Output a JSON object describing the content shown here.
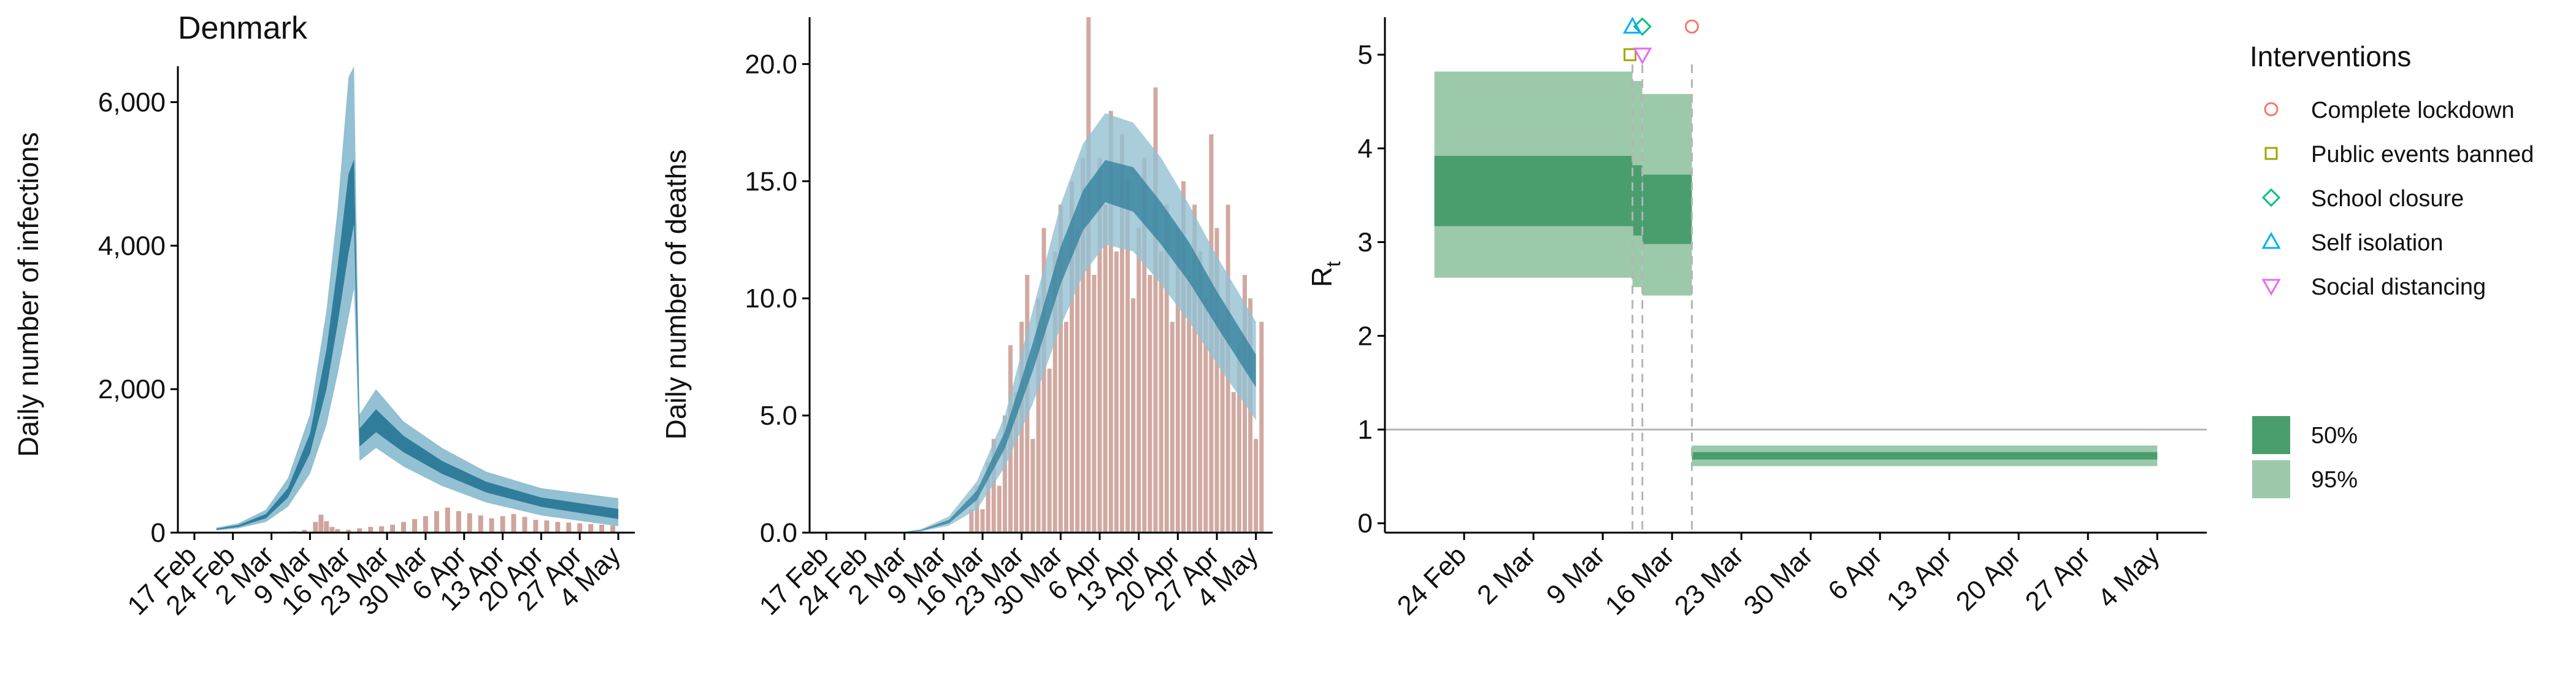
{
  "colors": {
    "infection_dark": "#2f7d9b",
    "infection_light": "#93c0d2",
    "infection_mid": "#5fa0ba",
    "observed_bar": "#c99a91",
    "observed_bar_edge": "#b98a82",
    "rt_50": "#4a9e6d",
    "rt_95": "#9cc9aa",
    "marker_lockdown": "#f8766d",
    "marker_public_events": "#a3a500",
    "marker_school": "#00bf7d",
    "marker_self_isolation": "#00b0f6",
    "marker_social_distancing": "#e76bf3",
    "reference_line": "#b5b5b5",
    "dashed_line": "#b5b5b5"
  },
  "chart_data": [
    {
      "type": "area",
      "panel": "infections",
      "title": "Denmark",
      "xlabel": "",
      "ylabel": "Daily number of infections",
      "x_tick_labels": [
        "17 Feb",
        "24 Feb",
        "2 Mar",
        "9 Mar",
        "16 Mar",
        "23 Mar",
        "30 Mar",
        "6 Apr",
        "13 Apr",
        "20 Apr",
        "27 Apr",
        "4 May"
      ],
      "y_tick_labels": [
        "0",
        "2,000",
        "4,000",
        "6,000"
      ],
      "xlim": [
        "2020-02-14",
        "2020-05-07"
      ],
      "ylim": [
        0,
        6500
      ],
      "series": [
        {
          "kind": "band_95",
          "x": [
            "2020-02-21",
            "2020-02-25",
            "2020-03-01",
            "2020-03-05",
            "2020-03-09",
            "2020-03-12",
            "2020-03-14",
            "2020-03-16",
            "2020-03-17",
            "2020-03-18",
            "2020-03-21",
            "2020-03-26",
            "2020-04-02",
            "2020-04-10",
            "2020-04-20",
            "2020-05-04"
          ],
          "lower": [
            30,
            60,
            150,
            360,
            820,
            1500,
            2200,
            3000,
            3400,
            1000,
            1180,
            920,
            650,
            420,
            240,
            90
          ],
          "upper": [
            70,
            130,
            320,
            760,
            1650,
            3100,
            4500,
            6350,
            6500,
            1650,
            2000,
            1550,
            1180,
            850,
            620,
            480
          ]
        },
        {
          "kind": "band_50",
          "x": [
            "2020-02-21",
            "2020-02-25",
            "2020-03-01",
            "2020-03-05",
            "2020-03-09",
            "2020-03-12",
            "2020-03-14",
            "2020-03-16",
            "2020-03-17",
            "2020-03-18",
            "2020-03-21",
            "2020-03-26",
            "2020-04-02",
            "2020-04-10",
            "2020-04-20",
            "2020-05-04"
          ],
          "lower": [
            40,
            80,
            200,
            490,
            1100,
            2000,
            2900,
            3900,
            4300,
            1200,
            1400,
            1120,
            820,
            560,
            360,
            190
          ],
          "upper": [
            55,
            105,
            260,
            620,
            1380,
            2550,
            3700,
            5000,
            5200,
            1450,
            1720,
            1350,
            1000,
            710,
            490,
            330
          ]
        }
      ],
      "bars": {
        "name": "observed infections",
        "x": [
          "2020-03-02",
          "2020-03-04",
          "2020-03-06",
          "2020-03-08",
          "2020-03-10",
          "2020-03-11",
          "2020-03-12",
          "2020-03-13",
          "2020-03-14",
          "2020-03-16",
          "2020-03-18",
          "2020-03-20",
          "2020-03-22",
          "2020-03-24",
          "2020-03-26",
          "2020-03-28",
          "2020-03-30",
          "2020-04-01",
          "2020-04-03",
          "2020-04-05",
          "2020-04-07",
          "2020-04-09",
          "2020-04-11",
          "2020-04-13",
          "2020-04-15",
          "2020-04-17",
          "2020-04-19",
          "2020-04-21",
          "2020-04-23",
          "2020-04-25",
          "2020-04-27",
          "2020-04-29",
          "2020-05-01",
          "2020-05-03"
        ],
        "values": [
          5,
          10,
          20,
          40,
          150,
          250,
          160,
          80,
          50,
          40,
          60,
          80,
          90,
          110,
          150,
          190,
          230,
          300,
          350,
          300,
          270,
          240,
          200,
          230,
          260,
          220,
          180,
          170,
          150,
          140,
          130,
          120,
          110,
          100
        ]
      }
    },
    {
      "type": "area",
      "panel": "deaths",
      "title": "",
      "xlabel": "",
      "ylabel": "Daily number of deaths",
      "x_tick_labels": [
        "17 Feb",
        "24 Feb",
        "2 Mar",
        "9 Mar",
        "16 Mar",
        "23 Mar",
        "30 Mar",
        "6 Apr",
        "13 Apr",
        "20 Apr",
        "27 Apr",
        "4 May"
      ],
      "y_tick_labels": [
        "0.0",
        "5.0",
        "10.0",
        "15.0",
        "20.0"
      ],
      "xlim": [
        "2020-02-14",
        "2020-05-07"
      ],
      "ylim": [
        0,
        22
      ],
      "series": [
        {
          "kind": "band_95",
          "x": [
            "2020-03-01",
            "2020-03-05",
            "2020-03-10",
            "2020-03-15",
            "2020-03-20",
            "2020-03-25",
            "2020-03-30",
            "2020-04-03",
            "2020-04-07",
            "2020-04-12",
            "2020-04-17",
            "2020-04-22",
            "2020-04-27",
            "2020-05-04"
          ],
          "lower": [
            0.0,
            0.05,
            0.3,
            1.0,
            2.8,
            5.5,
            8.8,
            11.0,
            12.3,
            12.0,
            10.6,
            9.0,
            7.2,
            4.8
          ],
          "upper": [
            0.0,
            0.15,
            0.7,
            2.2,
            5.0,
            9.5,
            14.0,
            16.6,
            17.9,
            17.5,
            16.0,
            14.0,
            11.8,
            9.0
          ]
        },
        {
          "kind": "band_50",
          "x": [
            "2020-03-01",
            "2020-03-05",
            "2020-03-10",
            "2020-03-15",
            "2020-03-20",
            "2020-03-25",
            "2020-03-30",
            "2020-04-03",
            "2020-04-07",
            "2020-04-12",
            "2020-04-17",
            "2020-04-22",
            "2020-04-27",
            "2020-05-04"
          ],
          "lower": [
            0.0,
            0.08,
            0.4,
            1.4,
            3.6,
            6.9,
            10.6,
            12.9,
            14.1,
            13.7,
            12.3,
            10.7,
            8.8,
            6.2
          ],
          "upper": [
            0.0,
            0.12,
            0.55,
            1.8,
            4.3,
            8.1,
            12.2,
            14.6,
            15.9,
            15.6,
            14.1,
            12.4,
            10.3,
            7.6
          ]
        }
      ],
      "bars": {
        "name": "observed deaths",
        "x": [
          "2020-03-14",
          "2020-03-15",
          "2020-03-16",
          "2020-03-17",
          "2020-03-18",
          "2020-03-19",
          "2020-03-20",
          "2020-03-21",
          "2020-03-22",
          "2020-03-23",
          "2020-03-24",
          "2020-03-25",
          "2020-03-26",
          "2020-03-27",
          "2020-03-28",
          "2020-03-29",
          "2020-03-30",
          "2020-03-31",
          "2020-04-01",
          "2020-04-02",
          "2020-04-03",
          "2020-04-04",
          "2020-04-05",
          "2020-04-06",
          "2020-04-07",
          "2020-04-08",
          "2020-04-09",
          "2020-04-10",
          "2020-04-11",
          "2020-04-12",
          "2020-04-13",
          "2020-04-14",
          "2020-04-15",
          "2020-04-16",
          "2020-04-17",
          "2020-04-18",
          "2020-04-19",
          "2020-04-20",
          "2020-04-21",
          "2020-04-22",
          "2020-04-23",
          "2020-04-24",
          "2020-04-25",
          "2020-04-26",
          "2020-04-27",
          "2020-04-28",
          "2020-04-29",
          "2020-04-30",
          "2020-05-01",
          "2020-05-02",
          "2020-05-03",
          "2020-05-04",
          "2020-05-05"
        ],
        "values": [
          1,
          2,
          1,
          3,
          4,
          2,
          5,
          8,
          6,
          9,
          11,
          4,
          10,
          13,
          7,
          12,
          14,
          9,
          15,
          13,
          16,
          22,
          11,
          16,
          14,
          18,
          12,
          17,
          15,
          10,
          13,
          16,
          11,
          19,
          12,
          14,
          9,
          13,
          15,
          11,
          14,
          12,
          10,
          17,
          13,
          9,
          14,
          6,
          8,
          11,
          10,
          4,
          9
        ]
      }
    },
    {
      "type": "area",
      "panel": "reproduction_number",
      "title": "",
      "xlabel": "",
      "ylabel": "R",
      "ylabel_subscript": "t",
      "x_tick_labels": [
        "24 Feb",
        "2 Mar",
        "9 Mar",
        "16 Mar",
        "23 Mar",
        "30 Mar",
        "6 Apr",
        "13 Apr",
        "20 Apr",
        "27 Apr",
        "4 May"
      ],
      "y_tick_labels": [
        "0",
        "1",
        "2",
        "3",
        "4",
        "5"
      ],
      "xlim": [
        "2020-02-16",
        "2020-05-09"
      ],
      "ylim": [
        -0.1,
        5.4
      ],
      "reference_line": 1,
      "steps": [
        {
          "start": "2020-02-21",
          "end": "2020-03-12",
          "lo95": 2.62,
          "hi95": 4.82,
          "lo50": 3.17,
          "hi50": 3.92
        },
        {
          "start": "2020-03-12",
          "end": "2020-03-13",
          "lo95": 2.52,
          "hi95": 4.72,
          "lo50": 3.07,
          "hi50": 3.82
        },
        {
          "start": "2020-03-13",
          "end": "2020-03-18",
          "lo95": 2.43,
          "hi95": 4.58,
          "lo50": 2.98,
          "hi50": 3.72
        },
        {
          "start": "2020-03-18",
          "end": "2020-05-04",
          "lo95": 0.61,
          "hi95": 0.83,
          "lo50": 0.68,
          "hi50": 0.76
        }
      ],
      "interventions": [
        {
          "name": "Complete lockdown",
          "date": "2020-03-18",
          "marker": "circle",
          "level": 5.3
        },
        {
          "name": "Public events banned",
          "date": "2020-03-12",
          "marker": "square",
          "level": 5.0
        },
        {
          "name": "School closure",
          "date": "2020-03-13",
          "marker": "diamond",
          "level": 5.3
        },
        {
          "name": "Self isolation",
          "date": "2020-03-12",
          "marker": "triangle-up",
          "level": 5.3
        },
        {
          "name": "Social distancing",
          "date": "2020-03-13",
          "marker": "triangle-down",
          "level": 5.0
        }
      ]
    }
  ],
  "legend": {
    "interventions_title": "Interventions",
    "interventions": [
      {
        "label": "Complete lockdown",
        "marker": "circle"
      },
      {
        "label": "Public events banned",
        "marker": "square"
      },
      {
        "label": "School closure",
        "marker": "diamond"
      },
      {
        "label": "Self isolation",
        "marker": "triangle-up"
      },
      {
        "label": "Social distancing",
        "marker": "triangle-down"
      }
    ],
    "bands": [
      {
        "label": "50%"
      },
      {
        "label": "95%"
      }
    ]
  }
}
